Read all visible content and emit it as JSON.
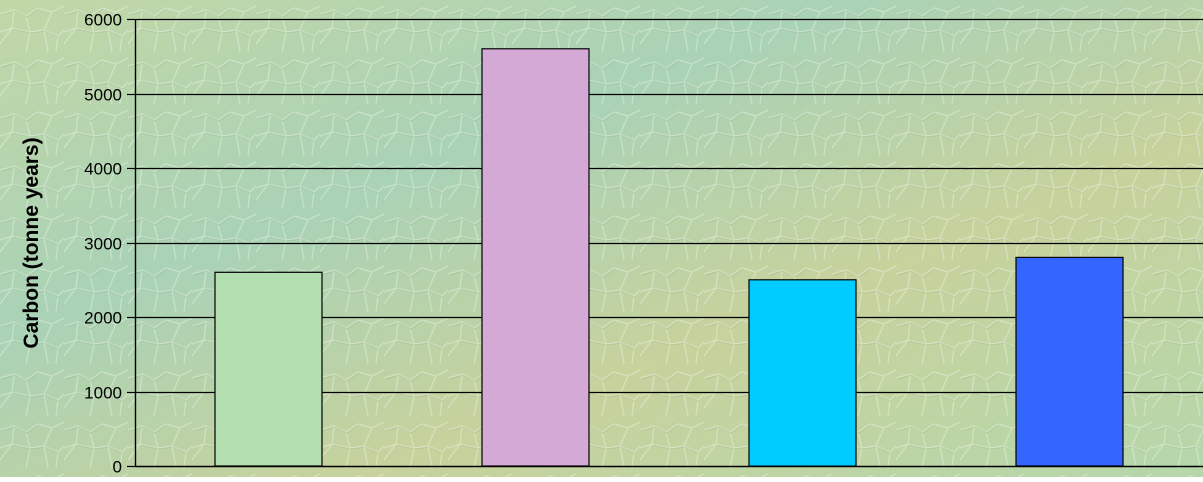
{
  "chart_data": {
    "type": "bar",
    "categories": [
      "",
      "",
      "",
      ""
    ],
    "values": [
      2600,
      5600,
      2500,
      2800
    ],
    "bar_colors": [
      "#b3dfb0",
      "#d4a9d6",
      "#00ccff",
      "#3366ff"
    ],
    "ylabel": "Carbon (tonne years)",
    "xlabel": "",
    "ylim": [
      0,
      6000
    ],
    "yticks": [
      0,
      1000,
      2000,
      3000,
      4000,
      5000,
      6000
    ],
    "grid": true,
    "legend": "none"
  },
  "colors": {
    "background_base": "#b9d3a6",
    "background_texture": "stone-mosaic",
    "gridline": "#000000",
    "bar_outline": "#000000"
  }
}
